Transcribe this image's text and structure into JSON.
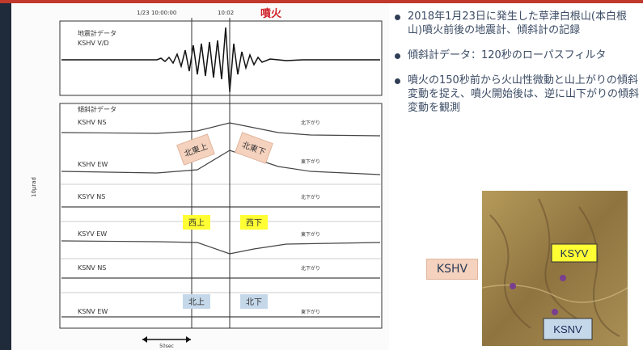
{
  "figure": {
    "time_left": "1/23 10:00:00",
    "time_right": "10:02",
    "eruption_label": "噴火",
    "seismo_title": "地震計データ",
    "seismo_station": "KSHV  V/D",
    "tilt_title": "傾斜計データ",
    "traces": [
      {
        "label": "KSHV  NS",
        "note": "北下がり"
      },
      {
        "label": "KSHV  EW",
        "note": "東下がり"
      },
      {
        "label": "KSYV  NS",
        "note": "北下がり"
      },
      {
        "label": "KSYV  EW",
        "note": "東下がり"
      },
      {
        "label": "KSNV  NS",
        "note": "北下がり"
      },
      {
        "label": "KSNV  EW",
        "note": "東下がり"
      }
    ],
    "tag_ns_up": "北東上",
    "tag_ns_down": "北東下",
    "tag_w_up": "西上",
    "tag_w_down": "西下",
    "tag_n_up": "北上",
    "tag_n_down": "北下",
    "scale_bar": "50sec",
    "y_unit": "10μrad"
  },
  "bullets": [
    "2018年1月23日に発生した草津白根山(本白根山)噴火前後の地震計、傾斜計の記録",
    "傾斜計データ：120秒のローパスフィルタ",
    "噴火の150秒前から火山性微動と山上がりの傾斜変動を捉え、噴火開始後は、逆に山下がりの傾斜変動を観測"
  ],
  "map": {
    "outside_label": "KSHV",
    "label_ksyv": "KSYV",
    "label_ksnv": "KSNV"
  },
  "colors": {
    "accent_red": "#c0392b",
    "tag_orange": "#f5d2be",
    "tag_yellow": "#ffff33",
    "tag_blue": "#c5d8ea"
  }
}
